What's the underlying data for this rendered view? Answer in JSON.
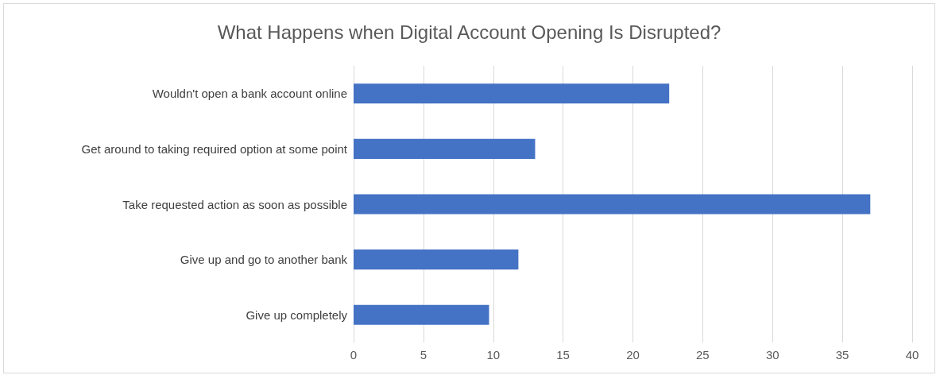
{
  "chart_data": {
    "type": "bar",
    "orientation": "horizontal",
    "title": "What Happens when Digital Account Opening Is Disrupted?",
    "categories": [
      "Wouldn't open a bank account online",
      "Get around to taking required option at some point",
      "Take requested action as soon as possible",
      "Give up and go to another bank",
      "Give up completely"
    ],
    "values": [
      22.6,
      13.0,
      37.0,
      11.8,
      9.7
    ],
    "color": "#4472c4",
    "xlim": [
      0,
      40
    ],
    "xticks": [
      0,
      5,
      10,
      15,
      20,
      25,
      30,
      35,
      40
    ],
    "grid": "x"
  }
}
